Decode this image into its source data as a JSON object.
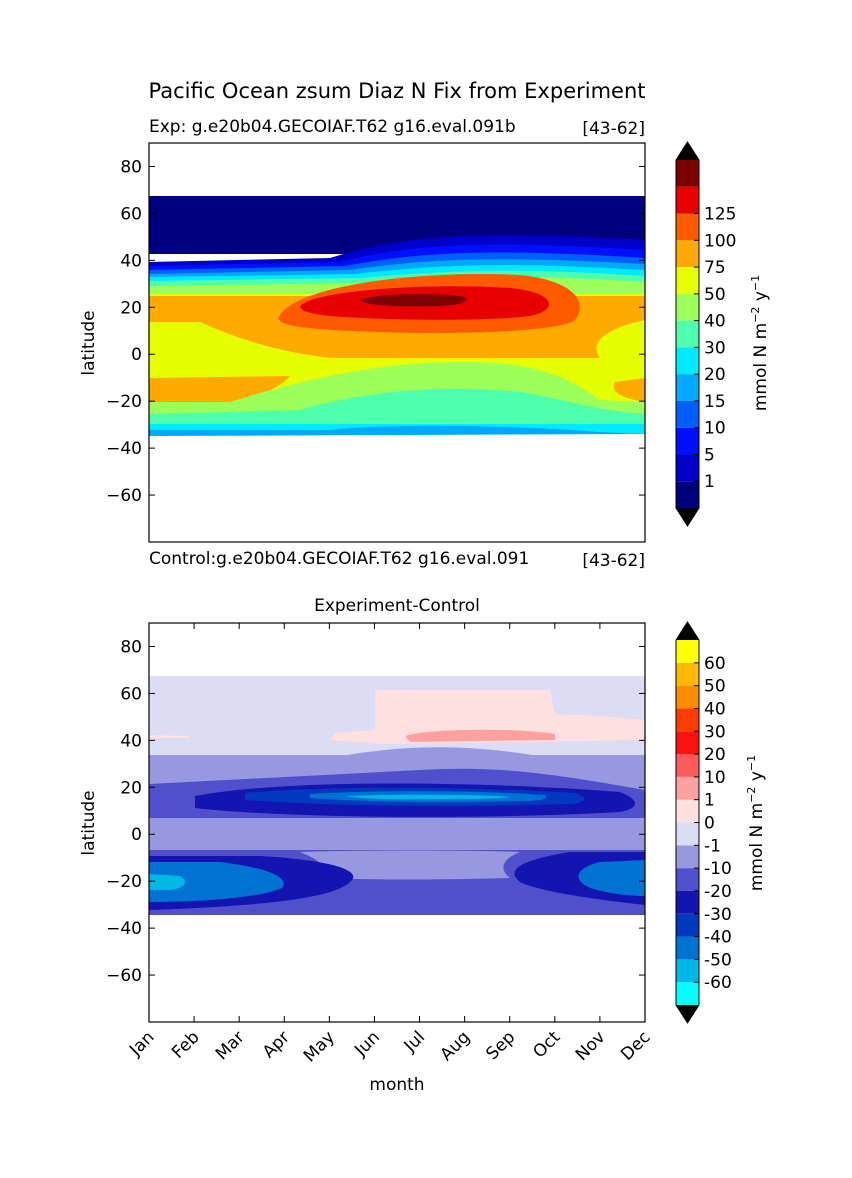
{
  "chart_data": [
    {
      "type": "heatmap",
      "title": "Pacific Ocean zsum Diaz N Fix from Experiment",
      "subtitle_left": "Exp:    g.e20b04.GECOIAF.T62 g16.eval.091b",
      "subtitle_right": "[43-62]",
      "ylabel": "latitude",
      "xlabel": "",
      "ylim": [
        -80,
        90
      ],
      "yticks": [
        "80",
        "60",
        "40",
        "20",
        "0",
        "−20",
        "−40",
        "−60"
      ],
      "ytick_values": [
        80,
        60,
        40,
        20,
        0,
        -20,
        -40,
        -60
      ],
      "colorbar": {
        "label": "mmol N m⁻² y⁻¹",
        "label_main": "mmol N m",
        "label_sup1": "−2",
        "label_mid": " y",
        "label_sup2": "−1",
        "levels": [
          0,
          1,
          5,
          10,
          15,
          20,
          30,
          40,
          50,
          75,
          100,
          125
        ],
        "tick_labels": [
          "1",
          "5",
          "10",
          "15",
          "20",
          "30",
          "40",
          "50",
          "75",
          "100",
          "125"
        ],
        "colors": [
          "#00007f",
          "#0000cc",
          "#0010ff",
          "#0060ff",
          "#00a8ff",
          "#00eaff",
          "#4dffaa",
          "#9dff5a",
          "#e6ff00",
          "#ffaa00",
          "#ff5a00",
          "#e80000",
          "#7f0000"
        ],
        "extend_colors": [
          "#000000",
          "#000000"
        ]
      }
    },
    {
      "type": "heatmap",
      "title": "Experiment-Control",
      "subtitle_left": "Control:g.e20b04.GECOIAF.T62 g16.eval.091",
      "subtitle_right": "[43-62]",
      "xlabel": "month",
      "ylabel": "latitude",
      "x": [
        "Jan",
        "Feb",
        "Mar",
        "Apr",
        "May",
        "Jun",
        "Jul",
        "Aug",
        "Sep",
        "Oct",
        "Nov",
        "Dec"
      ],
      "ylim": [
        -80,
        90
      ],
      "yticks": [
        "80",
        "60",
        "40",
        "20",
        "0",
        "−20",
        "−40",
        "−60"
      ],
      "ytick_values": [
        80,
        60,
        40,
        20,
        0,
        -20,
        -40,
        -60
      ],
      "colorbar": {
        "label": "mmol N m⁻² y⁻¹",
        "label_main": "mmol N m",
        "label_sup1": "−2",
        "label_mid": " y",
        "label_sup2": "−1",
        "levels": [
          -60,
          -50,
          -40,
          -30,
          -20,
          -10,
          -1,
          0,
          1,
          10,
          20,
          30,
          40,
          50,
          60
        ],
        "tick_labels": [
          "-60",
          "-50",
          "-40",
          "-30",
          "-20",
          "-10",
          "-1",
          "0",
          "1",
          "10",
          "20",
          "30",
          "40",
          "50",
          "60"
        ],
        "colors": [
          "#00ffff",
          "#00b8e8",
          "#0072d4",
          "#0038bf",
          "#1414b0",
          "#5050cc",
          "#9898e0",
          "#dcdcf5",
          "#ffe0e0",
          "#ffa0a0",
          "#ff5858",
          "#ff1010",
          "#ff3c00",
          "#ff8c00",
          "#ffb800",
          "#ffff00"
        ],
        "extend_colors": [
          "#000000",
          "#000000"
        ]
      }
    }
  ]
}
